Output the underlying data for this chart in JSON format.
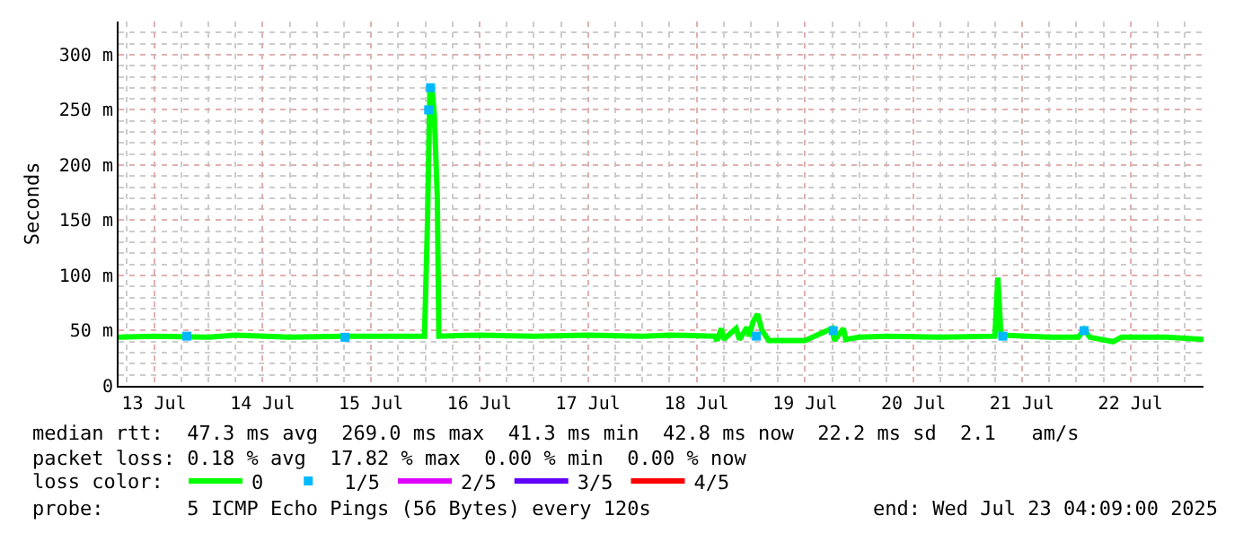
{
  "chart_data": {
    "type": "line",
    "ylabel": "Seconds",
    "legend_title": "loss color:",
    "legend": "bottom left",
    "grid": true,
    "marker": "none",
    "line_style": "solid",
    "xlim": [
      "2025-07-13T04:09",
      "2025-07-23T04:09"
    ],
    "xticks": [
      {
        "value": "2025-07-13T12:00",
        "label": "13 Jul"
      },
      {
        "value": "2025-07-14T12:00",
        "label": "14 Jul"
      },
      {
        "value": "2025-07-15T12:00",
        "label": "15 Jul"
      },
      {
        "value": "2025-07-16T12:00",
        "label": "16 Jul"
      },
      {
        "value": "2025-07-17T12:00",
        "label": "17 Jul"
      },
      {
        "value": "2025-07-18T12:00",
        "label": "18 Jul"
      },
      {
        "value": "2025-07-19T12:00",
        "label": "19 Jul"
      },
      {
        "value": "2025-07-20T12:00",
        "label": "20 Jul"
      },
      {
        "value": "2025-07-21T12:00",
        "label": "21 Jul"
      },
      {
        "value": "2025-07-22T12:00",
        "label": "22 Jul"
      }
    ],
    "ylim": [
      0,
      330
    ],
    "yticks": [
      0,
      {
        "value": 50,
        "label": "50 m"
      },
      {
        "value": 100,
        "label": "100 m"
      },
      {
        "value": 150,
        "label": "150 m"
      },
      {
        "value": 200,
        "label": "200 m"
      },
      {
        "value": 250,
        "label": "250 m"
      },
      {
        "value": 300,
        "label": "300 m"
      }
    ],
    "series": [
      {
        "name": "0",
        "color": "#00ff00",
        "x": [
          "2025-07-13T04:09",
          "2025-07-13T12:00",
          "2025-07-14T00:00",
          "2025-07-14T06:00",
          "2025-07-14T18:00",
          "2025-07-15T06:00",
          "2025-07-15T23:50",
          "2025-07-16T00:30",
          "2025-07-16T01:00",
          "2025-07-16T01:30",
          "2025-07-16T02:00",
          "2025-07-16T02:40",
          "2025-07-16T03:00",
          "2025-07-16T12:00",
          "2025-07-17T00:00",
          "2025-07-17T12:00",
          "2025-07-18T00:00",
          "2025-07-18T06:00",
          "2025-07-18T16:00",
          "2025-07-18T16:30",
          "2025-07-18T17:30",
          "2025-07-18T18:00",
          "2025-07-18T20:45",
          "2025-07-18T21:30",
          "2025-07-18T23:09",
          "2025-07-18T23:40",
          "2025-07-19T00:30",
          "2025-07-19T01:30",
          "2025-07-19T02:30",
          "2025-07-19T04:00",
          "2025-07-19T12:00",
          "2025-07-19T18:00",
          "2025-07-19T18:30",
          "2025-07-19T20:30",
          "2025-07-19T21:00",
          "2025-07-20T00:00",
          "2025-07-20T06:00",
          "2025-07-20T18:00",
          "2025-07-21T06:00",
          "2025-07-21T06:40",
          "2025-07-21T07:20",
          "2025-07-21T18:00",
          "2025-07-22T00:30",
          "2025-07-22T01:45",
          "2025-07-22T03:00",
          "2025-07-22T08:09",
          "2025-07-22T10:00",
          "2025-07-22T20:00",
          "2025-07-23T04:09"
        ],
        "values": [
          44,
          45,
          44,
          46,
          44,
          45,
          45,
          150,
          265,
          270,
          245,
          170,
          45,
          46,
          45,
          46,
          45,
          46,
          45,
          41,
          52,
          42,
          52,
          42,
          53,
          45,
          58,
          65,
          50,
          41,
          41,
          52,
          41,
          52,
          42,
          44,
          45,
          44,
          45,
          98,
          46,
          44,
          44,
          51,
          44,
          40,
          44,
          44,
          42
        ]
      },
      {
        "name": "1/5",
        "color": "#00b8ff",
        "type": "scatter",
        "marker": "square",
        "x": [
          "2025-07-13T19:15",
          "2025-07-15T06:15",
          "2025-07-16T00:45",
          "2025-07-16T01:10",
          "2025-07-19T01:15",
          "2025-07-19T18:15",
          "2025-07-21T07:45",
          "2025-07-22T01:45"
        ],
        "values": [
          45,
          44,
          250,
          270,
          45,
          50,
          45,
          50
        ]
      },
      {
        "name": "2/5",
        "color": "#e000ff"
      },
      {
        "name": "3/5",
        "color": "#6000ff"
      },
      {
        "name": "4/5",
        "color": "#ff0000"
      }
    ],
    "annotations": [
      "median rtt:  47.3 ms avg  269.0 ms max  41.3 ms min  42.8 ms now  22.2 ms sd  2.1   am/s",
      "packet loss: 0.18 % avg  17.82 % max  0.00 % min  0.00 % now",
      "probe:       5 ICMP Echo Pings (56 Bytes) every 120s",
      "end: Wed Jul 23 04:09:00 2025"
    ]
  }
}
